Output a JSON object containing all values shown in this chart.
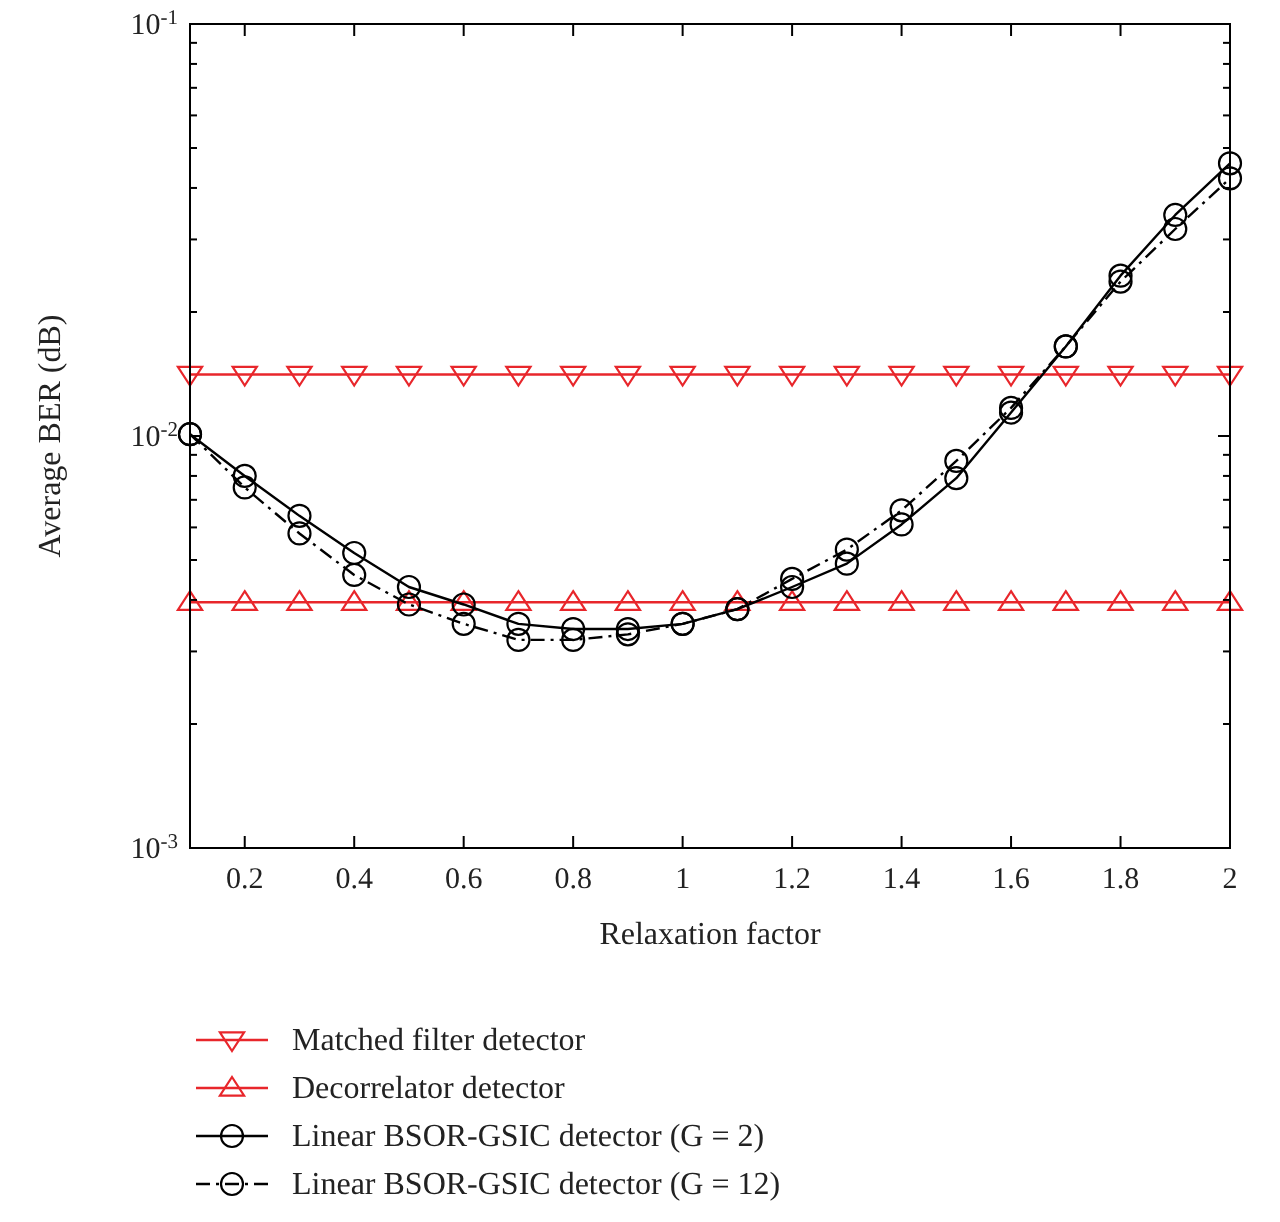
{
  "chart_data": {
    "type": "line",
    "xlabel": "Relaxation factor",
    "ylabel": "Average BER (dB)",
    "log": "y",
    "xlim": [
      0.1,
      2
    ],
    "xticks": [
      0.2,
      0.4,
      0.6,
      0.8,
      1,
      1.2,
      1.4,
      1.6,
      1.8,
      2
    ],
    "ylim": [
      0.001,
      0.1
    ],
    "yticks": [
      {
        "value": 0.001,
        "label": "10$^{-3}$"
      },
      {
        "value": 0.002,
        "label": null
      },
      {
        "value": 0.003,
        "label": null
      },
      {
        "value": 0.004,
        "label": null
      },
      {
        "value": 0.005,
        "label": null
      },
      {
        "value": 0.006,
        "label": null
      },
      {
        "value": 0.007,
        "label": null
      },
      {
        "value": 0.008,
        "label": null
      },
      {
        "value": 0.009,
        "label": null
      },
      {
        "value": 0.01,
        "label": "10$^{-2}$"
      },
      {
        "value": 0.02,
        "label": null
      },
      {
        "value": 0.03,
        "label": null
      },
      {
        "value": 0.04,
        "label": null
      },
      {
        "value": 0.05,
        "label": null
      },
      {
        "value": 0.06,
        "label": null
      },
      {
        "value": 0.07,
        "label": null
      },
      {
        "value": 0.08,
        "label": null
      },
      {
        "value": 0.09,
        "label": null
      },
      {
        "value": 0.1,
        "label": "10$^{-1}$"
      }
    ],
    "grid": false,
    "legend": "bottom",
    "x": [
      0.1,
      0.2,
      0.3,
      0.4,
      0.5,
      0.6,
      0.7,
      0.8,
      0.9,
      1,
      1.1,
      1.2,
      1.3,
      1.4,
      1.5,
      1.6,
      1.7,
      1.8,
      1.9,
      2
    ],
    "series": [
      {
        "name": "Matched filter detector",
        "color": "#e8262b",
        "marker": "triangle-down",
        "line_style": "solid",
        "values": [
          0.0141,
          0.0141,
          0.0141,
          0.0141,
          0.0141,
          0.0141,
          0.0141,
          0.0141,
          0.0141,
          0.0141,
          0.0141,
          0.0141,
          0.0141,
          0.0141,
          0.0141,
          0.0141,
          0.0141,
          0.0141,
          0.0141,
          0.0141
        ]
      },
      {
        "name": "Decorrelator detector",
        "color": "#e8262b",
        "marker": "triangle",
        "line_style": "solid",
        "values": [
          0.00395,
          0.00395,
          0.00395,
          0.00395,
          0.00395,
          0.00395,
          0.00395,
          0.00395,
          0.00395,
          0.00395,
          0.00395,
          0.00395,
          0.00395,
          0.00395,
          0.00395,
          0.00395,
          0.00395,
          0.00395,
          0.00395,
          0.00395
        ]
      },
      {
        "name": "Linear BSOR-GSIC detector (G = 2)",
        "color": "#000000",
        "marker": "circle",
        "line_style": "solid",
        "values": [
          0.0101,
          0.008,
          0.0064,
          0.0052,
          0.0043,
          0.0039,
          0.0035,
          0.0034,
          0.0034,
          0.0035,
          0.0038,
          0.0043,
          0.0049,
          0.0061,
          0.0079,
          0.0114,
          0.0165,
          0.0245,
          0.0344,
          0.0459
        ]
      },
      {
        "name": "Linear BSOR-GSIC detector (G = 12)",
        "color": "#000000",
        "marker": "circle",
        "line_style": "dashed",
        "values": [
          0.0101,
          0.0075,
          0.0058,
          0.0046,
          0.0039,
          0.0035,
          0.0032,
          0.0032,
          0.0033,
          0.0035,
          0.0038,
          0.0045,
          0.0053,
          0.0066,
          0.0087,
          0.0117,
          0.0165,
          0.0237,
          0.0318,
          0.0422
        ]
      }
    ]
  }
}
